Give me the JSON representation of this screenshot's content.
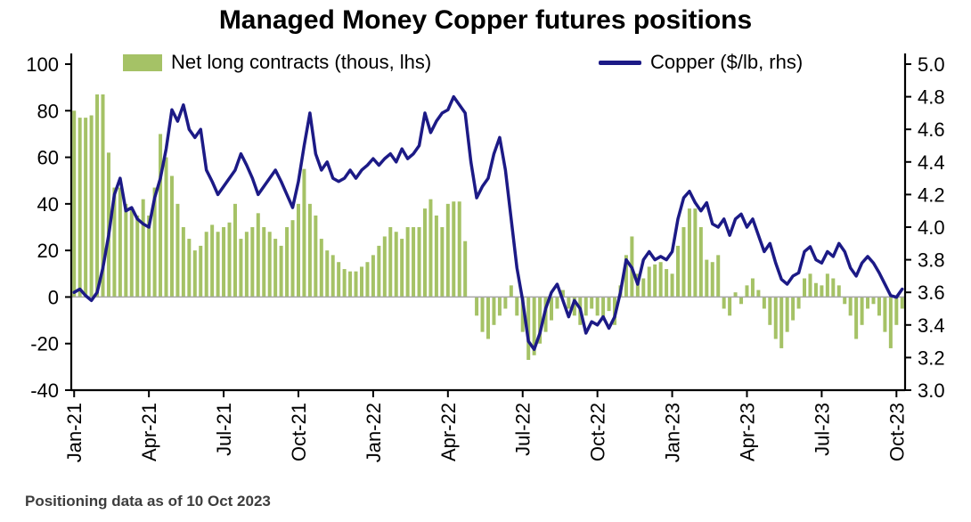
{
  "title": "Managed Money Copper futures positions",
  "footer": "Positioning data as of 10 Oct 2023",
  "colors": {
    "bar": "#a5c266",
    "line": "#1c1a86",
    "zero_line": "#a6a6a6",
    "axis": "#000000",
    "footer_text": "#3d3d3d"
  },
  "legend": [
    {
      "label": "Net long contracts (thous, lhs)",
      "type": "bar"
    },
    {
      "label": "Copper ($/lb, rhs)",
      "type": "line"
    }
  ],
  "chart_data": {
    "type": "bar+line",
    "title": "Managed Money Copper futures positions",
    "x_tick_labels": [
      "Jan-21",
      "Apr-21",
      "Jul-21",
      "Oct-21",
      "Jan-22",
      "Apr-22",
      "Jul-22",
      "Oct-22",
      "Jan-23",
      "Apr-23",
      "Jul-23",
      "Oct-23"
    ],
    "x_tick_indices": [
      0,
      13,
      26,
      39,
      52,
      65,
      78,
      91,
      104,
      117,
      130,
      143
    ],
    "left_axis": {
      "label": "Net long contracts (thous)",
      "min": -40,
      "max": 100,
      "ticks": [
        100,
        80,
        60,
        40,
        20,
        0,
        -20,
        -40
      ]
    },
    "right_axis": {
      "label": "Copper ($/lb)",
      "min": 3.0,
      "max": 5.0,
      "ticks": [
        5.0,
        4.8,
        4.6,
        4.4,
        4.2,
        4.0,
        3.8,
        3.6,
        3.4,
        3.2,
        3.0
      ]
    },
    "grid": "zero-line-only",
    "legend_position": "top",
    "series": [
      {
        "name": "Net long contracts (thous, lhs)",
        "type": "bar",
        "axis": "left",
        "values": [
          80,
          77,
          77,
          78,
          87,
          87,
          62,
          47,
          47,
          40,
          38,
          35,
          42,
          35,
          47,
          70,
          60,
          52,
          40,
          30,
          25,
          20,
          22,
          28,
          31,
          28,
          30,
          32,
          40,
          25,
          28,
          30,
          36,
          30,
          28,
          25,
          22,
          30,
          33,
          40,
          55,
          40,
          35,
          25,
          20,
          18,
          15,
          12,
          11,
          11,
          13,
          15,
          18,
          22,
          26,
          30,
          28,
          25,
          30,
          30,
          30,
          38,
          42,
          35,
          30,
          40,
          41,
          41,
          24,
          0,
          -8,
          -15,
          -18,
          -12,
          -8,
          -5,
          5,
          -8,
          -15,
          -27,
          -25,
          -20,
          -15,
          -10,
          -5,
          3,
          -5,
          -8,
          -12,
          -8,
          -5,
          -8,
          -10,
          -6,
          -12,
          5,
          18,
          26,
          10,
          8,
          13,
          14,
          15,
          12,
          10,
          22,
          30,
          38,
          38,
          30,
          16,
          15,
          18,
          -5,
          -8,
          2,
          -3,
          5,
          8,
          3,
          -5,
          -12,
          -18,
          -22,
          -15,
          -10,
          -5,
          8,
          10,
          6,
          5,
          10,
          8,
          5,
          -3,
          -8,
          -18,
          -12,
          -5,
          -3,
          -8,
          -15,
          -22,
          -12,
          -5
        ]
      },
      {
        "name": "Copper ($/lb, rhs)",
        "type": "line",
        "axis": "right",
        "values": [
          3.6,
          3.62,
          3.58,
          3.55,
          3.6,
          3.75,
          3.95,
          4.2,
          4.3,
          4.1,
          4.12,
          4.05,
          4.02,
          4.0,
          4.18,
          4.3,
          4.48,
          4.72,
          4.65,
          4.75,
          4.6,
          4.55,
          4.6,
          4.35,
          4.28,
          4.2,
          4.25,
          4.3,
          4.35,
          4.45,
          4.38,
          4.3,
          4.2,
          4.25,
          4.3,
          4.35,
          4.28,
          4.2,
          4.12,
          4.28,
          4.5,
          4.7,
          4.45,
          4.35,
          4.4,
          4.3,
          4.28,
          4.3,
          4.35,
          4.3,
          4.35,
          4.38,
          4.42,
          4.38,
          4.42,
          4.45,
          4.4,
          4.48,
          4.42,
          4.45,
          4.5,
          4.7,
          4.58,
          4.65,
          4.7,
          4.72,
          4.8,
          4.75,
          4.7,
          4.4,
          4.18,
          4.25,
          4.3,
          4.45,
          4.55,
          4.35,
          4.05,
          3.75,
          3.55,
          3.3,
          3.25,
          3.35,
          3.5,
          3.6,
          3.65,
          3.55,
          3.45,
          3.55,
          3.5,
          3.35,
          3.42,
          3.4,
          3.45,
          3.38,
          3.45,
          3.6,
          3.8,
          3.75,
          3.65,
          3.8,
          3.85,
          3.8,
          3.82,
          3.8,
          3.85,
          4.05,
          4.18,
          4.22,
          4.15,
          4.1,
          4.15,
          4.02,
          4.0,
          4.05,
          3.95,
          4.05,
          4.08,
          4.0,
          4.05,
          3.95,
          3.85,
          3.9,
          3.78,
          3.68,
          3.65,
          3.7,
          3.72,
          3.85,
          3.88,
          3.8,
          3.78,
          3.85,
          3.82,
          3.9,
          3.85,
          3.75,
          3.7,
          3.78,
          3.82,
          3.78,
          3.72,
          3.65,
          3.58,
          3.57,
          3.62
        ]
      }
    ]
  }
}
